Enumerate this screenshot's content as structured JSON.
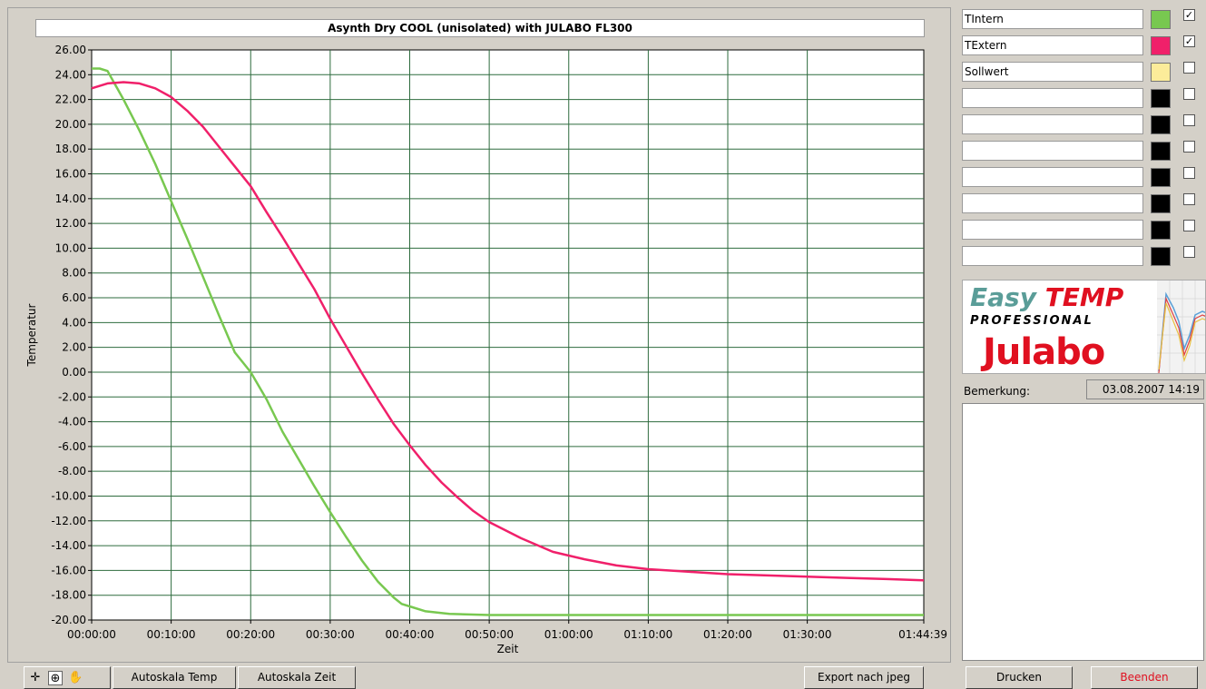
{
  "legend": [
    {
      "name": "TIntern",
      "color": "#78c850",
      "checked": true
    },
    {
      "name": "TExtern",
      "color": "#f0206a",
      "checked": true
    },
    {
      "name": "Sollwert",
      "color": "#fcec9a",
      "checked": false
    },
    {
      "name": "",
      "color": "#000000",
      "checked": false
    },
    {
      "name": "",
      "color": "#000000",
      "checked": false
    },
    {
      "name": "",
      "color": "#000000",
      "checked": false
    },
    {
      "name": "",
      "color": "#000000",
      "checked": false
    },
    {
      "name": "",
      "color": "#000000",
      "checked": false
    },
    {
      "name": "",
      "color": "#000000",
      "checked": false
    },
    {
      "name": "",
      "color": "#000000",
      "checked": false
    }
  ],
  "logo": {
    "easy": "Easy",
    "temp": "TEMP",
    "professional": "PROFESSIONAL",
    "brand": "Julabo"
  },
  "remark": {
    "label": "Bemerkung:",
    "date": "03.08.2007 14:19"
  },
  "toolbar": {
    "autoscale_temp": "Autoskala Temp",
    "autoscale_time": "Autoskala  Zeit",
    "export": "Export nach jpeg",
    "print": "Drucken",
    "quit": "Beenden",
    "icons": [
      "crosshair-icon",
      "zoom-icon",
      "pan-hand-icon"
    ]
  },
  "chart_data": {
    "type": "line",
    "title": "Asynth Dry COOL (unisolated) with JULABO FL300",
    "xlabel": "Zeit",
    "ylabel": "Temperatur",
    "xlim": [
      0,
      104.65
    ],
    "ylim": [
      -20,
      26
    ],
    "x_ticks": [
      "00:00:00",
      "00:10:00",
      "00:20:00",
      "00:30:00",
      "00:40:00",
      "00:50:00",
      "01:00:00",
      "01:10:00",
      "01:20:00",
      "01:30:00",
      "01:44:39"
    ],
    "x_tick_values": [
      0,
      10,
      20,
      30,
      40,
      50,
      60,
      70,
      80,
      90,
      104.65
    ],
    "y_ticks": [
      "26.00",
      "24.00",
      "22.00",
      "20.00",
      "18.00",
      "16.00",
      "14.00",
      "12.00",
      "10.00",
      "8.00",
      "6.00",
      "4.00",
      "2.00",
      "0.00",
      "-2.00",
      "-4.00",
      "-6.00",
      "-8.00",
      "-10.00",
      "-12.00",
      "-14.00",
      "-16.00",
      "-18.00",
      "-20.00"
    ],
    "y_tick_values": [
      26,
      24,
      22,
      20,
      18,
      16,
      14,
      12,
      10,
      8,
      6,
      4,
      2,
      0,
      -2,
      -4,
      -6,
      -8,
      -10,
      -12,
      -14,
      -16,
      -18,
      -20
    ],
    "grid": true,
    "series": [
      {
        "name": "TIntern",
        "color": "#78c850",
        "x": [
          0,
          1,
          2,
          4,
          6,
          8,
          10,
          12,
          14,
          16,
          18,
          20,
          22,
          24,
          26,
          28,
          30,
          32,
          34,
          36,
          38,
          39,
          40,
          42,
          45,
          50,
          55,
          60,
          70,
          80,
          90,
          100,
          104.65
        ],
        "values": [
          24.5,
          24.5,
          24.3,
          22.0,
          19.5,
          16.8,
          13.8,
          10.8,
          7.7,
          4.6,
          1.6,
          0.0,
          -2.2,
          -4.8,
          -7.0,
          -9.2,
          -11.3,
          -13.3,
          -15.2,
          -16.9,
          -18.2,
          -18.7,
          -18.9,
          -19.3,
          -19.5,
          -19.6,
          -19.6,
          -19.6,
          -19.6,
          -19.6,
          -19.6,
          -19.6,
          -19.6
        ]
      },
      {
        "name": "TExtern",
        "color": "#f0206a",
        "x": [
          0,
          2,
          4,
          6,
          8,
          10,
          12,
          14,
          16,
          18,
          20,
          22,
          24,
          26,
          28,
          30,
          32,
          34,
          36,
          38,
          40,
          42,
          44,
          46,
          48,
          50,
          54,
          58,
          62,
          66,
          70,
          75,
          80,
          85,
          90,
          95,
          100,
          104.65
        ],
        "values": [
          22.9,
          23.3,
          23.4,
          23.3,
          22.9,
          22.2,
          21.1,
          19.8,
          18.2,
          16.6,
          15.0,
          12.9,
          10.9,
          8.8,
          6.7,
          4.3,
          2.1,
          -0.1,
          -2.2,
          -4.2,
          -5.9,
          -7.5,
          -8.9,
          -10.1,
          -11.2,
          -12.1,
          -13.4,
          -14.5,
          -15.1,
          -15.6,
          -15.9,
          -16.1,
          -16.3,
          -16.4,
          -16.5,
          -16.6,
          -16.7,
          -16.8
        ]
      }
    ]
  }
}
